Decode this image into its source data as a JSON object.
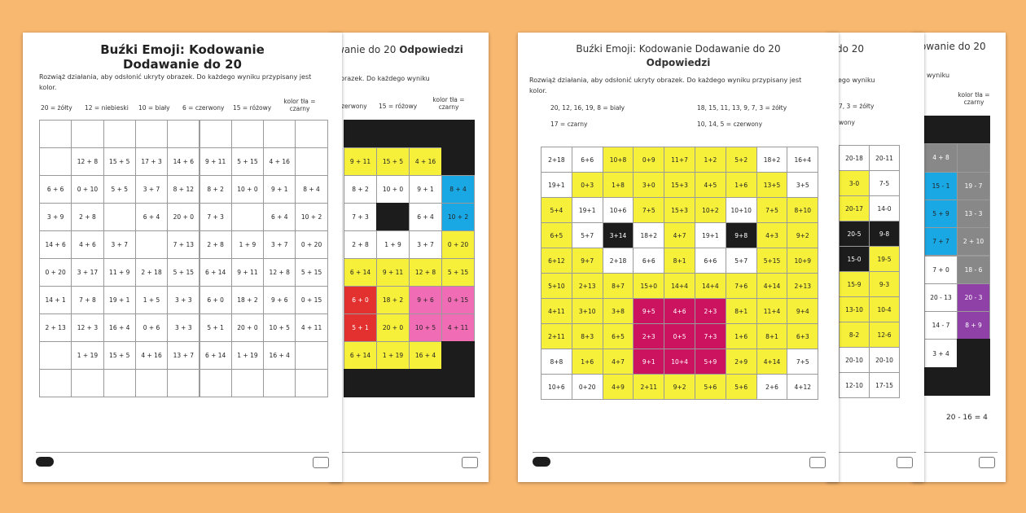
{
  "left_answer_sheet": {
    "title": "wanie do 20",
    "title_bold": "Odpowiedzi",
    "instructions": "obrazek. Do każdego wyniku",
    "key": [
      "czerwony",
      "15 = różowy",
      "kolor tła = czarny"
    ],
    "grid": [
      [
        null,
        null,
        null,
        null
      ],
      [
        "9 + 11",
        "15 + 5",
        "4 + 16",
        null
      ],
      [
        "8 + 2",
        "10 + 0",
        "9 + 1",
        "8 + 4"
      ],
      [
        "7 + 3",
        null,
        "6 + 4",
        "10 + 2"
      ],
      [
        "2 + 8",
        "1 + 9",
        "3 + 7",
        "0 + 20"
      ],
      [
        "6 + 14",
        "9 + 11",
        "12 + 8",
        "5 + 15"
      ],
      [
        "6 + 0",
        "18 + 2",
        "9 + 6",
        "0 + 15"
      ],
      [
        "5 + 1",
        "20 + 0",
        "10 + 5",
        "4 + 11"
      ],
      [
        "6 + 14",
        "1 + 19",
        "16 + 4",
        null
      ],
      [
        null,
        null,
        null,
        null
      ]
    ]
  },
  "left_worksheet": {
    "title": [
      "Buźki Emoji: Kodowanie",
      "Dodawanie do 20"
    ],
    "instructions": "Rozwiąż działania, aby odsłonić ukryty obrazek. Do każdego wyniku przypisany jest kolor.",
    "key": [
      "20 = żółty",
      "12 = niebieski",
      "10 = biały",
      "6 = czerwony",
      "15 = różowy",
      "kolor tła = czarny"
    ],
    "grid": [
      [
        null,
        null,
        null,
        null,
        null,
        null,
        null,
        null,
        null
      ],
      [
        null,
        "12 + 8",
        "15 + 5",
        "17 + 3",
        "14 + 6",
        "9 + 11",
        "5 + 15",
        "4 + 16",
        null
      ],
      [
        "6 + 6",
        "0 + 10",
        "5 + 5",
        "3 + 7",
        "8 + 12",
        "8 + 2",
        "10 + 0",
        "9 + 1",
        "8 + 4"
      ],
      [
        "3 + 9",
        "2 + 8",
        null,
        "6 + 4",
        "20 + 0",
        "7 + 3",
        null,
        "6 + 4",
        "10 + 2"
      ],
      [
        "14 + 6",
        "4 + 6",
        "3 + 7",
        null,
        "7 + 13",
        "2 + 8",
        "1 + 9",
        "3 + 7",
        "0 + 20"
      ],
      [
        "0 + 20",
        "3 + 17",
        "11 + 9",
        "2 + 18",
        "5 + 15",
        "6 + 14",
        "9 + 11",
        "12 + 8",
        "5 + 15"
      ],
      [
        "14 + 1",
        "7 + 8",
        "19 + 1",
        "1 + 5",
        "3 + 3",
        "6 + 0",
        "18 + 2",
        "9 + 6",
        "0 + 15"
      ],
      [
        "2 + 13",
        "12 + 3",
        "16 + 4",
        "0 + 6",
        "3 + 3",
        "5 + 1",
        "20 + 0",
        "10 + 5",
        "4 + 11"
      ],
      [
        null,
        "1 + 19",
        "15 + 5",
        "4 + 16",
        "13 + 7",
        "6 + 14",
        "1 + 19",
        "16 + 4",
        null
      ],
      [
        null,
        null,
        null,
        null,
        null,
        null,
        null,
        null,
        null
      ]
    ]
  },
  "right_sheet_3": {
    "title": "owanie do 20",
    "instructions": "wyniku",
    "key": "kolor tła = czarny",
    "grid": [
      [
        null,
        null
      ],
      [
        "4 + 8",
        null
      ],
      [
        "15 - 1",
        "19 - 7"
      ],
      [
        "5 + 9",
        "13 - 3"
      ],
      [
        "7 + 7",
        "2 + 10"
      ],
      [
        "7 + 0",
        "18 - 6"
      ],
      [
        "20 - 13",
        "20 - 3"
      ],
      [
        "14 - 7",
        "8 + 9"
      ],
      [
        "3 + 4",
        null
      ],
      [
        null,
        null
      ]
    ],
    "answer": "20 - 16 = 4"
  },
  "right_sheet_2": {
    "title": "do 20",
    "instructions": "ego wyniku",
    "key": [
      "7, 3 = żółty",
      "wony"
    ],
    "grid": [
      [
        "20-18",
        "20-11"
      ],
      [
        "3-0",
        "7-5"
      ],
      [
        "20-17",
        "14-0"
      ],
      [
        "20-5",
        "9-8"
      ],
      [
        "15-0",
        "19-5"
      ],
      [
        "15-9",
        "9-3"
      ],
      [
        "13-10",
        "10-4"
      ],
      [
        "8-2",
        "12-6"
      ],
      [
        "20-10",
        "20-10"
      ],
      [
        "12-10",
        "17-15"
      ]
    ]
  },
  "right_answer_sheet": {
    "title": [
      "Buźki Emoji: Kodowanie Dodawanie do 20",
      "Odpowiedzi"
    ],
    "instructions": "Rozwiąż działania, aby odsłonić ukryty obrazek. Do każdego wyniku przypisany jest kolor.",
    "key": [
      "20, 12, 16, 19, 8 = biały",
      "18, 15, 11, 13, 9, 7, 3 = żółty",
      "17 = czarny",
      "10, 14, 5 = czerwony"
    ],
    "grid": [
      [
        "2+18",
        "6+6",
        "10+8",
        "0+9",
        "11+7",
        "1+2",
        "5+2",
        "18+2",
        "16+4"
      ],
      [
        "19+1",
        "0+3",
        "1+8",
        "3+0",
        "15+3",
        "4+5",
        "1+6",
        "13+5",
        "3+5"
      ],
      [
        "5+4",
        "19+1",
        "10+6",
        "7+5",
        "15+3",
        "10+2",
        "10+10",
        "7+5",
        "8+10"
      ],
      [
        "6+5",
        "5+7",
        "3+14",
        "18+2",
        "4+7",
        "19+1",
        "9+8",
        "4+3",
        "9+2"
      ],
      [
        "6+12",
        "9+7",
        "2+18",
        "6+6",
        "8+1",
        "6+6",
        "5+7",
        "5+15",
        "10+9"
      ],
      [
        "5+10",
        "2+13",
        "8+7",
        "15+0",
        "14+4",
        "14+4",
        "7+6",
        "4+14",
        "2+13"
      ],
      [
        "4+11",
        "3+10",
        "3+8",
        "9+5",
        "4+6",
        "2+3",
        "8+1",
        "11+4",
        "9+4"
      ],
      [
        "2+11",
        "8+3",
        "6+5",
        "2+3",
        "0+5",
        "7+3",
        "1+6",
        "8+1",
        "6+3"
      ],
      [
        "8+8",
        "1+6",
        "4+7",
        "9+1",
        "10+4",
        "5+9",
        "2+9",
        "4+14",
        "7+5"
      ],
      [
        "10+6",
        "0+20",
        "4+9",
        "2+11",
        "9+2",
        "5+6",
        "5+6",
        "2+6",
        "4+12"
      ]
    ]
  }
}
